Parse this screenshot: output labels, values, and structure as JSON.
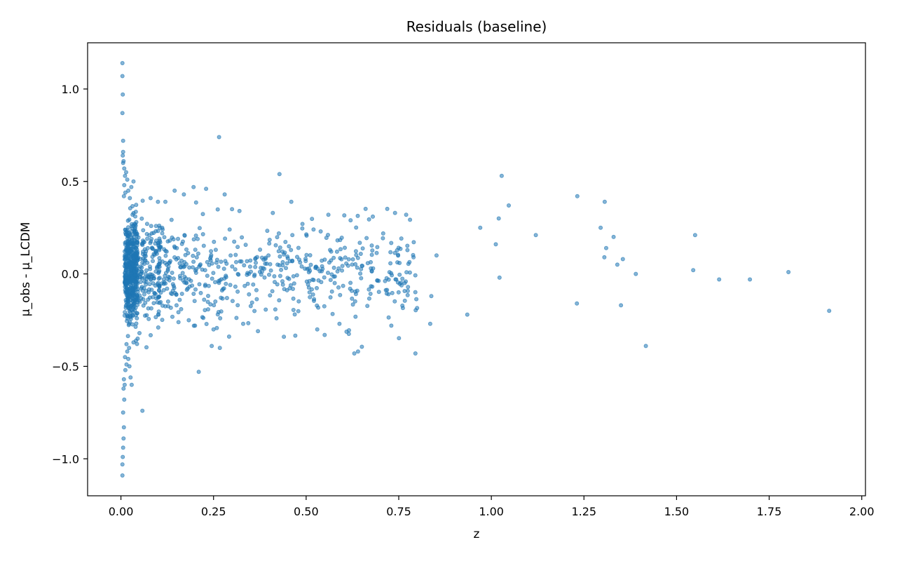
{
  "chart_data": {
    "type": "scatter",
    "title": "Residuals (baseline)",
    "xlabel": "z",
    "ylabel": "μ_obs - μ_LCDM",
    "xlim": [
      -0.09,
      2.01
    ],
    "ylim": [
      -1.2,
      1.25
    ],
    "xticks": [
      {
        "value": 0.0,
        "label": "0.00"
      },
      {
        "value": 0.25,
        "label": "0.25"
      },
      {
        "value": 0.5,
        "label": "0.50"
      },
      {
        "value": 0.75,
        "label": "0.75"
      },
      {
        "value": 1.0,
        "label": "1.00"
      },
      {
        "value": 1.25,
        "label": "1.25"
      },
      {
        "value": 1.5,
        "label": "1.50"
      },
      {
        "value": 1.75,
        "label": "1.75"
      },
      {
        "value": 2.0,
        "label": "2.00"
      }
    ],
    "yticks": [
      {
        "value": -1.0,
        "label": "−1.0"
      },
      {
        "value": -0.5,
        "label": "−0.5"
      },
      {
        "value": 0.0,
        "label": "0.0"
      },
      {
        "value": 0.5,
        "label": "0.5"
      },
      {
        "value": 1.0,
        "label": "1.0"
      }
    ],
    "grid": false,
    "marker_color": "#1f77b4",
    "marker_alpha": 0.55,
    "points": [
      [
        0.004,
        1.14
      ],
      [
        0.004,
        1.07
      ],
      [
        0.005,
        0.97
      ],
      [
        0.004,
        0.87
      ],
      [
        0.006,
        0.72
      ],
      [
        0.006,
        0.66
      ],
      [
        0.005,
        0.64
      ],
      [
        0.007,
        0.61
      ],
      [
        0.006,
        0.6
      ],
      [
        0.009,
        0.57
      ],
      [
        0.011,
        0.53
      ],
      [
        0.014,
        0.55
      ],
      [
        0.017,
        0.51
      ],
      [
        0.009,
        0.48
      ],
      [
        0.012,
        0.44
      ],
      [
        0.008,
        0.42
      ],
      [
        0.02,
        0.45
      ],
      [
        0.024,
        0.41
      ],
      [
        0.028,
        0.47
      ],
      [
        0.034,
        0.5
      ],
      [
        0.004,
        -1.09
      ],
      [
        0.004,
        -1.03
      ],
      [
        0.005,
        -0.99
      ],
      [
        0.006,
        -0.94
      ],
      [
        0.007,
        -0.89
      ],
      [
        0.008,
        -0.83
      ],
      [
        0.006,
        -0.75
      ],
      [
        0.009,
        -0.68
      ],
      [
        0.007,
        -0.62
      ],
      [
        0.008,
        -0.57
      ],
      [
        0.01,
        -0.6
      ],
      [
        0.012,
        -0.52
      ],
      [
        0.015,
        -0.49
      ],
      [
        0.011,
        -0.45
      ],
      [
        0.017,
        -0.42
      ],
      [
        0.02,
        -0.46
      ],
      [
        0.023,
        -0.5
      ],
      [
        0.026,
        -0.56
      ],
      [
        0.029,
        -0.6
      ],
      [
        0.022,
        -0.4
      ],
      [
        0.015,
        -0.38
      ],
      [
        0.034,
        -0.37
      ],
      [
        0.058,
        -0.74
      ],
      [
        0.045,
        -0.35
      ],
      [
        0.05,
        -0.32
      ],
      [
        0.265,
        0.74
      ],
      [
        0.428,
        0.54
      ],
      [
        0.21,
        -0.53
      ],
      [
        0.245,
        -0.39
      ],
      [
        0.267,
        -0.4
      ],
      [
        0.46,
        0.39
      ],
      [
        0.41,
        0.33
      ],
      [
        0.3,
        0.35
      ],
      [
        0.32,
        0.34
      ],
      [
        0.28,
        0.43
      ],
      [
        0.23,
        0.46
      ],
      [
        0.196,
        0.47
      ],
      [
        0.17,
        0.43
      ],
      [
        0.145,
        0.45
      ],
      [
        0.12,
        0.39
      ],
      [
        0.08,
        0.41
      ],
      [
        0.1,
        0.39
      ],
      [
        0.2,
        -0.28
      ],
      [
        0.25,
        -0.3
      ],
      [
        0.33,
        -0.27
      ],
      [
        0.37,
        -0.31
      ],
      [
        0.42,
        -0.24
      ],
      [
        0.44,
        -0.34
      ],
      [
        0.53,
        -0.3
      ],
      [
        0.55,
        -0.33
      ],
      [
        0.59,
        -0.27
      ],
      [
        0.63,
        -0.43
      ],
      [
        0.64,
        -0.42
      ],
      [
        0.73,
        -0.28
      ],
      [
        0.795,
        -0.43
      ],
      [
        0.835,
        -0.27
      ],
      [
        0.838,
        -0.12
      ],
      [
        0.935,
        -0.22
      ],
      [
        0.852,
        0.1
      ],
      [
        0.79,
        0.09
      ],
      [
        0.77,
        0.32
      ],
      [
        0.74,
        0.33
      ],
      [
        0.68,
        0.31
      ],
      [
        0.62,
        0.29
      ],
      [
        0.56,
        0.32
      ],
      [
        0.52,
        0.24
      ],
      [
        0.49,
        0.27
      ],
      [
        0.97,
        0.25
      ],
      [
        1.012,
        0.16
      ],
      [
        1.02,
        0.3
      ],
      [
        1.028,
        0.53
      ],
      [
        1.047,
        0.37
      ],
      [
        1.022,
        -0.02
      ],
      [
        1.12,
        0.21
      ],
      [
        1.232,
        0.42
      ],
      [
        1.231,
        -0.16
      ],
      [
        1.295,
        0.25
      ],
      [
        1.306,
        0.39
      ],
      [
        1.305,
        0.09
      ],
      [
        1.31,
        0.14
      ],
      [
        1.33,
        0.2
      ],
      [
        1.34,
        0.05
      ],
      [
        1.355,
        0.08
      ],
      [
        1.35,
        -0.17
      ],
      [
        1.39,
        0.0
      ],
      [
        1.417,
        -0.39
      ],
      [
        1.545,
        0.02
      ],
      [
        1.55,
        0.21
      ],
      [
        1.615,
        -0.03
      ],
      [
        1.698,
        -0.03
      ],
      [
        1.802,
        0.01
      ],
      [
        1.912,
        -0.2
      ]
    ],
    "cluster_points_generated": 1150
  }
}
